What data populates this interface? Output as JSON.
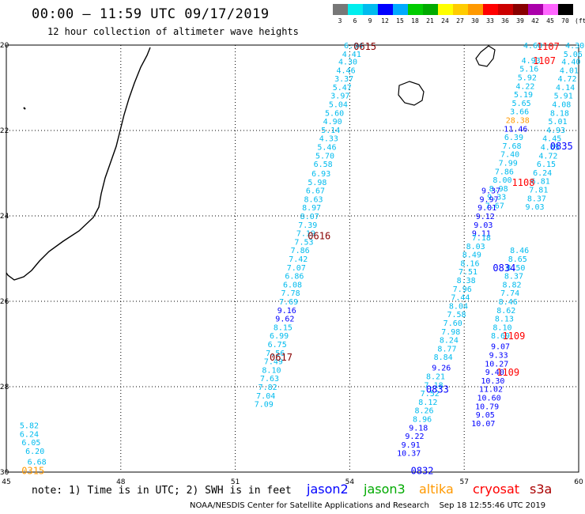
{
  "title": "00:00 – 11:59 UTC 09/17/2019",
  "subtitle": "12 hour collection of altimeter wave heights",
  "scale": {
    "labels": [
      "3",
      "6",
      "9",
      "12",
      "15",
      "18",
      "21",
      "24",
      "27",
      "30",
      "33",
      "36",
      "39",
      "42",
      "45",
      "70",
      "(ft)"
    ],
    "colors": [
      "#777777",
      "#00eeee",
      "#00bbee",
      "#0000ff",
      "#00aaff",
      "#00cc00",
      "#00aa00",
      "#ffff00",
      "#ffcc00",
      "#ff9900",
      "#ff0000",
      "#cc0000",
      "#880000",
      "#aa00aa",
      "#ff66ff",
      "#000000"
    ]
  },
  "axes": {
    "lon_labels": [
      "45",
      "48",
      "51",
      "54",
      "57",
      "60"
    ],
    "lat_labels": [
      "-20",
      "-22",
      "-24",
      "-26",
      "-28",
      "-30"
    ]
  },
  "track_labels": [
    {
      "text": "0615",
      "color": "#880000",
      "lon": 54.1,
      "lat": -20.02
    },
    {
      "text": "0616",
      "color": "#880000",
      "lon": 52.9,
      "lat": -24.45
    },
    {
      "text": "0617",
      "color": "#880000",
      "lon": 51.9,
      "lat": -27.3
    },
    {
      "text": "0315",
      "color": "#ff9900",
      "lon": 45.4,
      "lat": -29.95
    },
    {
      "text": "0832",
      "color": "#0000ff",
      "lon": 55.6,
      "lat": -29.95
    },
    {
      "text": "0833",
      "color": "#0000ff",
      "lon": 56.0,
      "lat": -28.05
    },
    {
      "text": "0834",
      "color": "#0000ff",
      "lon": 57.75,
      "lat": -25.2
    },
    {
      "text": "0835",
      "color": "#0000ff",
      "lon": 59.25,
      "lat": -22.35
    },
    {
      "text": "1107",
      "color": "#ff0000",
      "lon": 58.9,
      "lat": -20.02
    },
    {
      "text": "1107",
      "color": "#ff0000",
      "lon": 58.8,
      "lat": -20.35
    },
    {
      "text": "1108",
      "color": "#ff0000",
      "lon": 58.25,
      "lat": -23.2
    },
    {
      "text": "1109",
      "color": "#ff0000",
      "lon": 58.0,
      "lat": -26.8
    },
    {
      "text": "1109",
      "color": "#ff0000",
      "lon": 57.85,
      "lat": -27.65
    }
  ],
  "tracks": [
    {
      "color": "#00bbee",
      "points": [
        [
          "6.04",
          54.1,
          -20.0
        ],
        [
          "4.41",
          54.05,
          -20.2
        ],
        [
          "4.30",
          53.95,
          -20.38
        ],
        [
          "4.46",
          53.9,
          -20.58
        ],
        [
          "3.37",
          53.85,
          -20.78
        ],
        [
          "5.47",
          53.8,
          -20.98
        ],
        [
          "3.97",
          53.75,
          -21.18
        ],
        [
          "5.04",
          53.7,
          -21.38
        ],
        [
          "5.60",
          53.6,
          -21.58
        ],
        [
          "4.90",
          53.55,
          -21.78
        ],
        [
          "5.14",
          53.5,
          -21.98
        ],
        [
          "4.33",
          53.45,
          -22.18
        ],
        [
          "5.46",
          53.4,
          -22.38
        ],
        [
          "5.70",
          53.35,
          -22.58
        ],
        [
          "6.58",
          53.3,
          -22.78
        ],
        [
          "6.93",
          53.25,
          -23.0
        ],
        [
          "5.98",
          53.15,
          -23.2
        ],
        [
          "6.67",
          53.1,
          -23.4
        ],
        [
          "8.63",
          53.05,
          -23.6
        ],
        [
          "8.97",
          53.0,
          -23.8
        ],
        [
          "8.07",
          52.95,
          -24.0
        ],
        [
          "7.39",
          52.9,
          -24.2
        ],
        [
          "7.19",
          52.85,
          -24.4
        ],
        [
          "7.53",
          52.8,
          -24.6
        ],
        [
          "7.86",
          52.7,
          -24.8
        ],
        [
          "7.42",
          52.65,
          -25.0
        ],
        [
          "7.07",
          52.6,
          -25.2
        ],
        [
          "6.86",
          52.55,
          -25.4
        ],
        [
          "6.08",
          52.5,
          -25.6
        ],
        [
          "7.78",
          52.45,
          -25.8
        ],
        [
          "7.69",
          52.4,
          -26.0
        ]
      ]
    },
    {
      "color": "#0000ff",
      "points": [
        [
          "9.16",
          52.35,
          -26.2
        ],
        [
          "9.62",
          52.3,
          -26.4
        ]
      ]
    },
    {
      "color": "#00bbee",
      "points": [
        [
          "8.15",
          52.25,
          -26.6
        ],
        [
          "6.99",
          52.15,
          -26.8
        ],
        [
          "6.75",
          52.1,
          -27.0
        ],
        [
          "7.56",
          52.05,
          -27.2
        ],
        [
          "7.49",
          52.0,
          -27.4
        ],
        [
          "8.10",
          51.95,
          -27.6
        ],
        [
          "7.63",
          51.9,
          -27.8
        ],
        [
          "7.82",
          51.85,
          -28.0
        ],
        [
          "7.04",
          51.8,
          -28.2
        ],
        [
          "7.09",
          51.75,
          -28.4
        ]
      ]
    },
    {
      "color": "#00bbee",
      "points": [
        [
          "5.82",
          45.6,
          -28.9
        ],
        [
          "6.24",
          45.6,
          -29.1
        ],
        [
          "6.05",
          45.65,
          -29.3
        ],
        [
          "6.20",
          45.75,
          -29.5
        ],
        [
          "6.68",
          45.8,
          -29.75
        ]
      ]
    },
    {
      "color": "#00bbee",
      "points": [
        [
          "4.60",
          58.8,
          -20.0
        ],
        [
          "4.93",
          58.75,
          -20.35
        ],
        [
          "5.16",
          58.7,
          -20.55
        ],
        [
          "5.92",
          58.65,
          -20.75
        ],
        [
          "4.22",
          58.6,
          -20.95
        ],
        [
          "5.19",
          58.55,
          -21.15
        ],
        [
          "5.65",
          58.5,
          -21.35
        ],
        [
          "3.66",
          58.45,
          -21.55
        ]
      ]
    },
    {
      "color": "#ff9900",
      "points": [
        [
          "28.38",
          58.4,
          -21.75
        ]
      ]
    },
    {
      "color": "#0000ff",
      "points": [
        [
          "11.46",
          58.35,
          -21.95
        ]
      ]
    },
    {
      "color": "#00bbee",
      "points": [
        [
          "6.39",
          58.3,
          -22.15
        ],
        [
          "7.68",
          58.25,
          -22.35
        ],
        [
          "7.40",
          58.2,
          -22.55
        ],
        [
          "7.99",
          58.15,
          -22.75
        ],
        [
          "7.86",
          58.05,
          -22.95
        ],
        [
          "8.00",
          58.0,
          -23.15
        ],
        [
          "8.98",
          57.9,
          -23.35
        ],
        [
          "9.33",
          57.85,
          -23.55
        ],
        [
          "7.67",
          57.8,
          -23.75
        ]
      ]
    },
    {
      "color": "#0000ff",
      "points": [
        [
          "9.37",
          57.7,
          -23.4
        ],
        [
          "9.97",
          57.65,
          -23.6
        ],
        [
          "9.01",
          57.6,
          -23.8
        ],
        [
          "9.12",
          57.55,
          -24.0
        ],
        [
          "9.03",
          57.5,
          -24.2
        ],
        [
          "9.11",
          57.45,
          -24.4
        ]
      ]
    },
    {
      "color": "#00bbee",
      "points": [
        [
          "7.18",
          57.45,
          -24.5
        ],
        [
          "8.03",
          57.3,
          -24.7
        ],
        [
          "8.49",
          57.2,
          -24.9
        ],
        [
          "8.16",
          57.15,
          -25.1
        ],
        [
          "7.51",
          57.1,
          -25.3
        ],
        [
          "8.38",
          57.05,
          -25.5
        ],
        [
          "7.96",
          56.95,
          -25.7
        ],
        [
          "7.44",
          56.9,
          -25.9
        ],
        [
          "8.04",
          56.85,
          -26.1
        ],
        [
          "7.58",
          56.8,
          -26.3
        ],
        [
          "7.60",
          56.7,
          -26.5
        ],
        [
          "7.98",
          56.65,
          -26.7
        ],
        [
          "8.24",
          56.6,
          -26.9
        ],
        [
          "8.77",
          56.55,
          -27.1
        ],
        [
          "8.84",
          56.45,
          -27.3
        ]
      ]
    },
    {
      "color": "#0000ff",
      "points": [
        [
          "9.26",
          56.4,
          -27.55
        ]
      ]
    },
    {
      "color": "#00bbee",
      "points": [
        [
          "8.21",
          56.25,
          -27.75
        ],
        [
          "7.18",
          56.2,
          -27.95
        ],
        [
          "7.52",
          56.1,
          -28.15
        ],
        [
          "8.12",
          56.05,
          -28.35
        ],
        [
          "8.26",
          55.95,
          -28.55
        ],
        [
          "8.96",
          55.9,
          -28.75
        ]
      ]
    },
    {
      "color": "#0000ff",
      "points": [
        [
          "9.18",
          55.8,
          -28.95
        ],
        [
          "9.22",
          55.7,
          -29.15
        ],
        [
          "9.91",
          55.6,
          -29.35
        ],
        [
          "10.37",
          55.55,
          -29.55
        ]
      ]
    },
    {
      "color": "#00bbee",
      "points": [
        [
          "4.30",
          59.9,
          -20.0
        ],
        [
          "5.06",
          59.85,
          -20.2
        ],
        [
          "4.40",
          59.8,
          -20.38
        ],
        [
          "4.01",
          59.75,
          -20.58
        ],
        [
          "4.72",
          59.7,
          -20.78
        ],
        [
          "4.14",
          59.65,
          -20.98
        ],
        [
          "5.91",
          59.6,
          -21.18
        ],
        [
          "4.08",
          59.55,
          -21.38
        ],
        [
          "8.18",
          59.5,
          -21.58
        ],
        [
          "5.01",
          59.45,
          -21.78
        ],
        [
          "4.93",
          59.4,
          -21.98
        ],
        [
          "4.45",
          59.3,
          -22.18
        ],
        [
          "4.65",
          59.25,
          -22.38
        ],
        [
          "4.72",
          59.2,
          -22.58
        ],
        [
          "6.15",
          59.15,
          -22.78
        ],
        [
          "6.24",
          59.05,
          -22.98
        ],
        [
          "6.81",
          59.0,
          -23.18
        ],
        [
          "7.81",
          58.95,
          -23.38
        ],
        [
          "8.37",
          58.9,
          -23.58
        ],
        [
          "9.03",
          58.85,
          -23.78
        ],
        [
          "8.46",
          58.45,
          -24.8
        ],
        [
          "8.65",
          58.4,
          -25.0
        ],
        [
          "8.50",
          58.35,
          -25.2
        ],
        [
          "8.37",
          58.3,
          -25.4
        ],
        [
          "8.82",
          58.25,
          -25.6
        ],
        [
          "7.74",
          58.2,
          -25.8
        ],
        [
          "8.46",
          58.15,
          -26.0
        ],
        [
          "8.62",
          58.1,
          -26.2
        ],
        [
          "8.13",
          58.05,
          -26.4
        ],
        [
          "8.10",
          58.0,
          -26.6
        ],
        [
          "8.69",
          57.95,
          -26.8
        ]
      ]
    },
    {
      "color": "#0000ff",
      "points": [
        [
          "9.07",
          57.95,
          -27.05
        ],
        [
          "9.33",
          57.9,
          -27.25
        ],
        [
          "10.27",
          57.85,
          -27.45
        ],
        [
          "9.40",
          57.8,
          -27.65
        ],
        [
          "10.30",
          57.75,
          -27.85
        ],
        [
          "11.02",
          57.7,
          -28.05
        ],
        [
          "10.60",
          57.65,
          -28.25
        ],
        [
          "10.79",
          57.6,
          -28.45
        ],
        [
          "9.05",
          57.55,
          -28.65
        ],
        [
          "10.07",
          57.5,
          -28.85
        ]
      ]
    }
  ],
  "note": "note: 1) Time is in UTC; 2) SWH is in feet",
  "legend": [
    {
      "name": "jason2",
      "color": "#0000ff"
    },
    {
      "name": "jason3",
      "color": "#00aa00"
    },
    {
      "name": "altika",
      "color": "#ff9900"
    },
    {
      "name": "cryosat",
      "color": "#ff0000"
    },
    {
      "name": "s3a",
      "color": "#aa0000"
    }
  ],
  "credit_left": "NOAA/NESDIS Center for Satellite Applications and Research",
  "credit_right": "Sep 18 12:55:46 UTC 2019"
}
